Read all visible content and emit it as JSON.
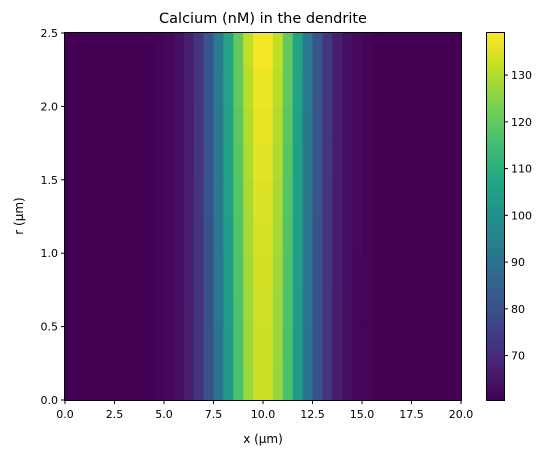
{
  "chart_data": {
    "type": "heatmap",
    "title": "Calcium (nM) in the dendrite",
    "xlabel": "x (μm)",
    "ylabel": "r (μm)",
    "xlim": [
      0,
      20
    ],
    "ylim": [
      0,
      2.5
    ],
    "x_ticks": [
      "0.0",
      "2.5",
      "5.0",
      "7.5",
      "10.0",
      "12.5",
      "15.0",
      "17.5",
      "20.0"
    ],
    "y_ticks": [
      "0.0",
      "0.5",
      "1.0",
      "1.5",
      "2.0",
      "2.5"
    ],
    "x_bins": 40,
    "r_bins": [
      0.0,
      0.25,
      0.5,
      0.75,
      1.0,
      1.25,
      1.5,
      1.75,
      2.0,
      2.25,
      2.5
    ],
    "peak_x": 10.0,
    "width_sigma": 1.7,
    "baseline_nM": 60.5,
    "peak_by_r_nM": [
      133.5,
      133.8,
      134.2,
      134.6,
      135.2,
      135.8,
      136.4,
      137.0,
      137.7,
      138.6
    ],
    "colorbar": {
      "cmap": "viridis",
      "vmin": 60.5,
      "vmax": 139,
      "ticks": [
        "70",
        "80",
        "90",
        "100",
        "110",
        "120",
        "130"
      ]
    }
  }
}
